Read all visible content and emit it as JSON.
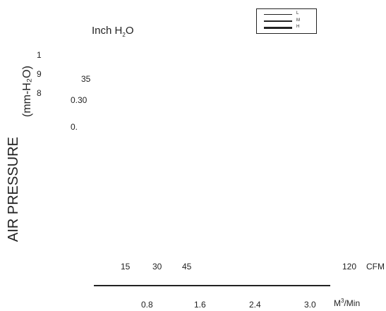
{
  "chart_data": {
    "type": "line",
    "title": "",
    "ylabel": "AIR PRESSURE",
    "ylabel_unit": "(mm-H₂O)",
    "y2label": {
      "main": "Inch H",
      "sub": "2",
      "tail": "O"
    },
    "y_mm_ticks": [
      "1",
      "9",
      "8"
    ],
    "y_inch_ticks": [
      "35",
      "0.30",
      "0."
    ],
    "x_cfm_ticks": [
      "15",
      "30",
      "45",
      "120"
    ],
    "x_cfm_unit": "CFM",
    "x_m3_ticks": [
      "0.8",
      "1.6",
      "2.4",
      "3.0"
    ],
    "x_m3_unit": {
      "main": "M",
      "sup": "3",
      "tail": "/Min"
    },
    "legend": {
      "placement": "top-right",
      "entries": [
        "L",
        "M",
        "H"
      ]
    },
    "series": []
  },
  "colors": {
    "ink": "#222222",
    "background": "#ffffff"
  }
}
